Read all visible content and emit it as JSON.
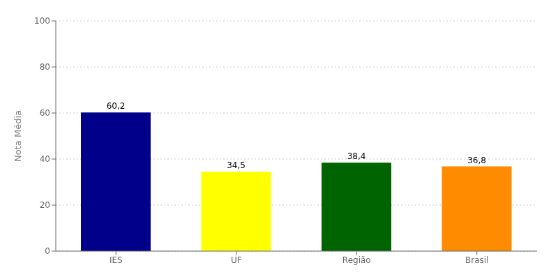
{
  "chart_data": {
    "type": "bar",
    "categories": [
      "IES",
      "UF",
      "Região",
      "Brasil"
    ],
    "values": [
      60.2,
      34.5,
      38.4,
      36.8
    ],
    "value_labels": [
      "60,2",
      "34,5",
      "38,4",
      "36,8"
    ],
    "colors": [
      "#00008B",
      "#FFFF00",
      "#006400",
      "#FF8C00"
    ],
    "ylabel": "Nota Média",
    "ylim": [
      0,
      100
    ],
    "yticks": [
      0,
      20,
      40,
      60,
      80,
      100
    ],
    "grid": true,
    "data_labels": true
  }
}
